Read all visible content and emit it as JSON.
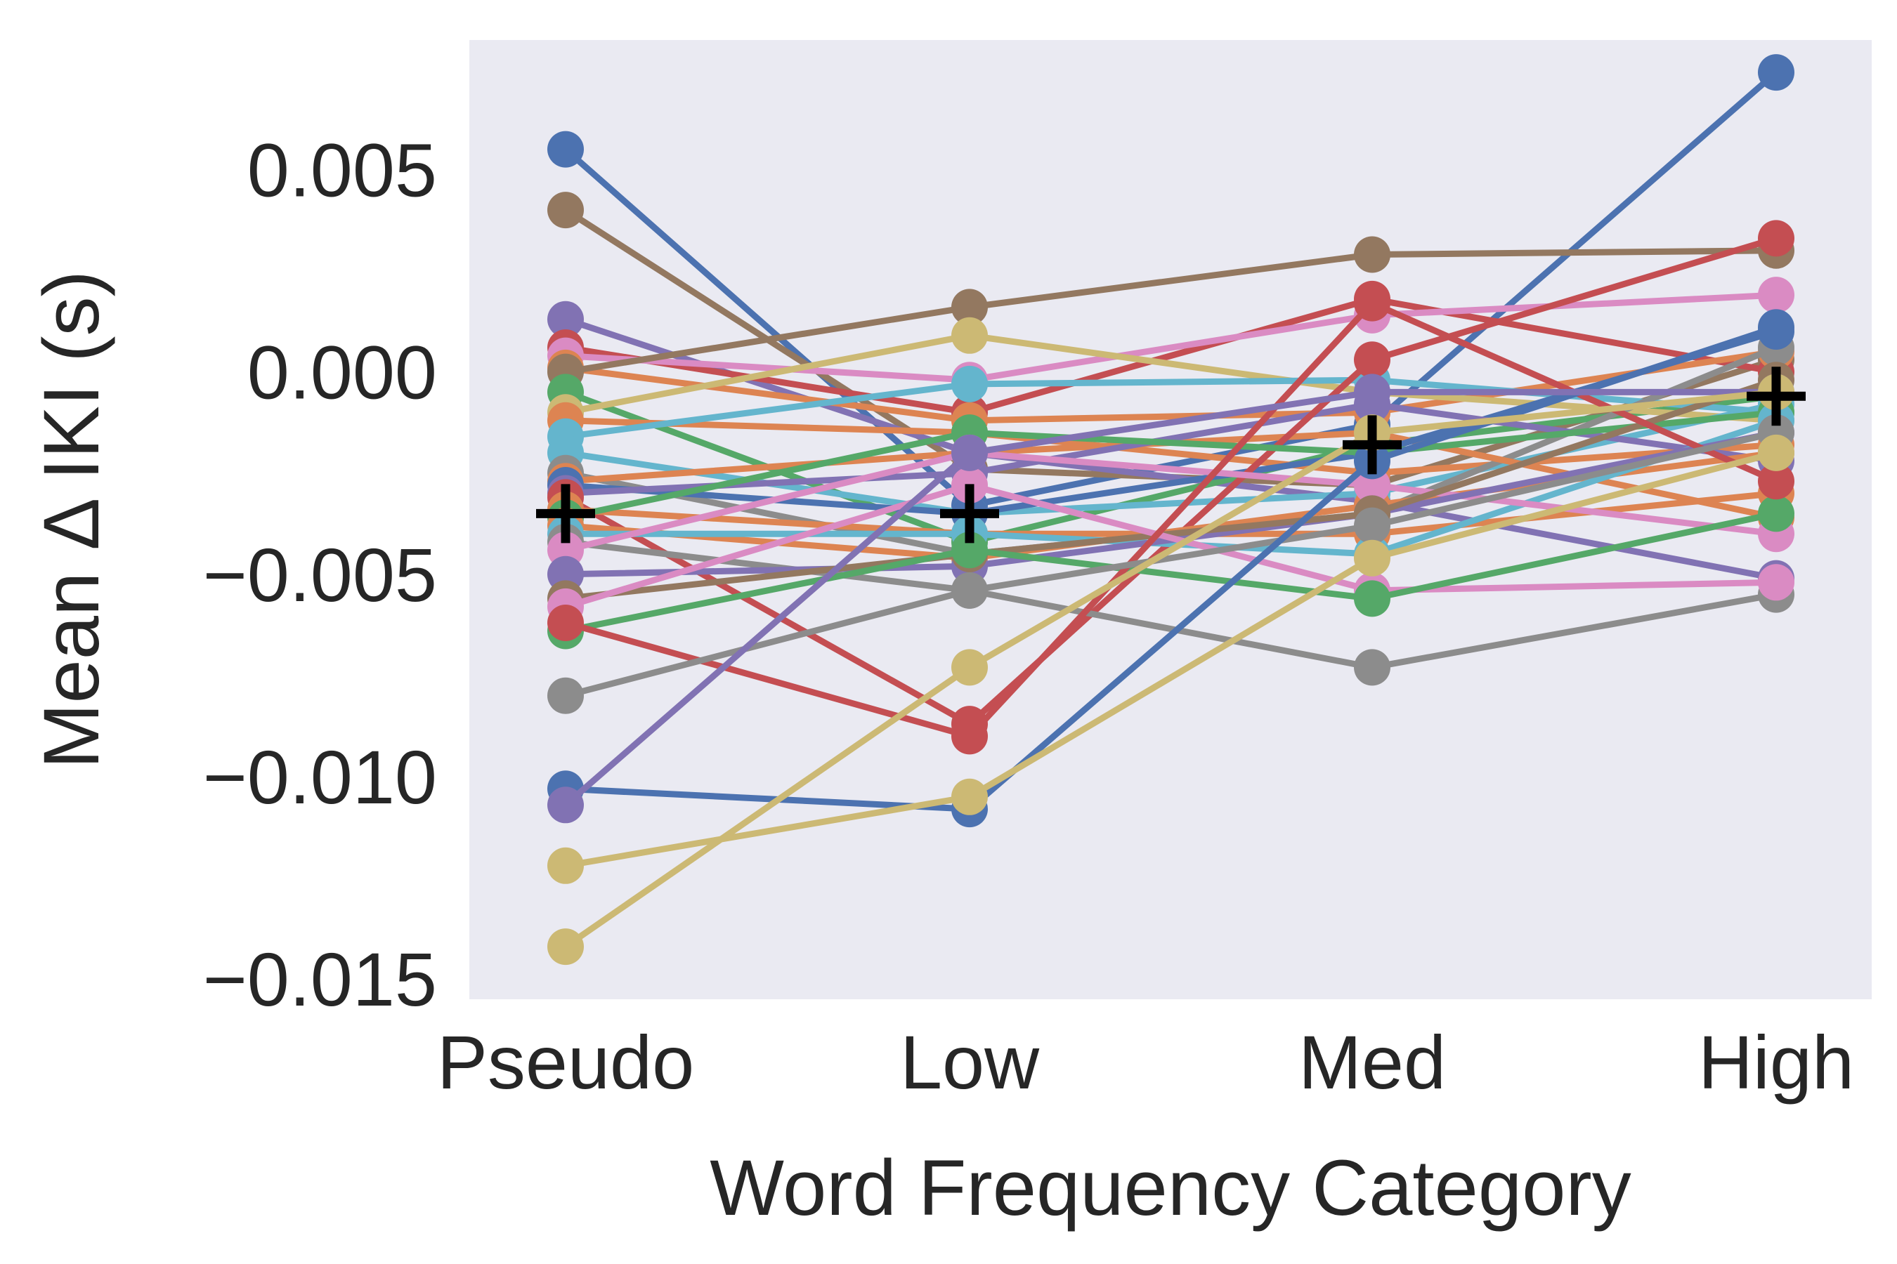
{
  "chart_data": {
    "type": "line",
    "title": "",
    "xlabel": "Word Frequency Category",
    "ylabel": "Mean Δ IKI (s)",
    "categories": [
      "Pseudo",
      "Low",
      "Med",
      "High"
    ],
    "ylim": [
      -0.0155,
      0.0082
    ],
    "yticks": [
      -0.015,
      -0.01,
      -0.005,
      0.0,
      0.005
    ],
    "ytick_labels": [
      "−0.015",
      "−0.010",
      "−0.005",
      "0.000",
      "0.005"
    ],
    "grid": false,
    "background": "#eaeaf2",
    "palette": [
      "#4c72b0",
      "#dd8452",
      "#55a868",
      "#c44e52",
      "#8172b3",
      "#937860",
      "#da8bc3",
      "#8c8c8c",
      "#ccb974",
      "#64b5cd"
    ],
    "series": [
      {
        "values": [
          0.0055,
          -0.0033,
          -0.0013,
          0.0074
        ],
        "color": "#4c72b0"
      },
      {
        "values": [
          0.004,
          -0.0024,
          -0.0028,
          0.0003
        ],
        "color": "#937860"
      },
      {
        "values": [
          0.0013,
          -0.002,
          -0.0032,
          -0.0051
        ],
        "color": "#8172b3"
      },
      {
        "values": [
          0.0006,
          -0.001,
          0.0018,
          0.0
        ],
        "color": "#c44e52"
      },
      {
        "values": [
          0.0004,
          -0.0002,
          0.0014,
          0.0019
        ],
        "color": "#da8bc3"
      },
      {
        "values": [
          0.0001,
          -0.0012,
          -0.001,
          0.0005
        ],
        "color": "#dd8452"
      },
      {
        "values": [
          0.0,
          0.0016,
          0.0029,
          0.003
        ],
        "color": "#937860"
      },
      {
        "values": [
          -0.0005,
          -0.0042,
          -0.0018,
          -0.0006
        ],
        "color": "#55a868"
      },
      {
        "values": [
          -0.001,
          0.0009,
          -0.0005,
          -0.0012
        ],
        "color": "#ccb974"
      },
      {
        "values": [
          -0.0012,
          -0.0015,
          -0.0025,
          -0.0018
        ],
        "color": "#dd8452"
      },
      {
        "values": [
          -0.0016,
          -0.0003,
          -0.0002,
          -0.001
        ],
        "color": "#64b5cd"
      },
      {
        "values": [
          -0.002,
          -0.0035,
          -0.003,
          -0.0008
        ],
        "color": "#64b5cd"
      },
      {
        "values": [
          -0.0025,
          -0.0045,
          -0.0035,
          0.0006
        ],
        "color": "#8c8c8c"
      },
      {
        "values": [
          -0.0027,
          -0.002,
          -0.0015,
          -0.0036
        ],
        "color": "#dd8452"
      },
      {
        "values": [
          -0.0028,
          -0.0035,
          -0.002,
          0.001
        ],
        "color": "#4c72b0"
      },
      {
        "values": [
          -0.003,
          -0.0025,
          -0.0008,
          -0.0022
        ],
        "color": "#8172b3"
      },
      {
        "values": [
          -0.0031,
          -0.0087,
          0.0003,
          0.0033
        ],
        "color": "#c44e52"
      },
      {
        "values": [
          -0.0034,
          -0.004,
          -0.004,
          -0.003
        ],
        "color": "#dd8452"
      },
      {
        "values": [
          -0.0036,
          -0.0015,
          -0.002,
          -0.001
        ],
        "color": "#55a868"
      },
      {
        "values": [
          -0.0038,
          -0.0046,
          -0.0033,
          -0.002
        ],
        "color": "#dd8452"
      },
      {
        "values": [
          -0.004,
          -0.004,
          -0.0045,
          -0.0012
        ],
        "color": "#64b5cd"
      },
      {
        "values": [
          -0.0042,
          -0.0054,
          -0.0073,
          -0.0055
        ],
        "color": "#8c8c8c"
      },
      {
        "values": [
          -0.0044,
          -0.002,
          -0.0028,
          -0.004
        ],
        "color": "#da8bc3"
      },
      {
        "values": [
          -0.005,
          -0.0048,
          -0.0035,
          -0.0015
        ],
        "color": "#8172b3"
      },
      {
        "values": [
          -0.0056,
          -0.0045,
          -0.0035,
          -0.0002
        ],
        "color": "#937860"
      },
      {
        "values": [
          -0.0058,
          -0.0028,
          -0.0054,
          -0.0052
        ],
        "color": "#da8bc3"
      },
      {
        "values": [
          -0.0064,
          -0.0044,
          -0.0056,
          -0.0035
        ],
        "color": "#55a868"
      },
      {
        "values": [
          -0.0062,
          -0.009,
          0.0017,
          -0.0027
        ],
        "color": "#c44e52"
      },
      {
        "values": [
          -0.008,
          -0.0054,
          -0.0038,
          -0.0015
        ],
        "color": "#8c8c8c"
      },
      {
        "values": [
          -0.0103,
          -0.0108,
          -0.0022,
          0.0011
        ],
        "color": "#4c72b0"
      },
      {
        "values": [
          -0.0107,
          -0.002,
          -0.0005,
          -0.0005
        ],
        "color": "#8172b3"
      },
      {
        "values": [
          -0.0122,
          -0.0105,
          -0.0046,
          -0.002
        ],
        "color": "#ccb974"
      },
      {
        "values": [
          -0.0142,
          -0.0073,
          -0.0015,
          -0.0005
        ],
        "color": "#ccb974"
      }
    ],
    "mean_markers": {
      "symbol": "+",
      "color": "#000000",
      "values": [
        -0.0035,
        -0.0035,
        -0.0018,
        -0.0006
      ]
    }
  }
}
